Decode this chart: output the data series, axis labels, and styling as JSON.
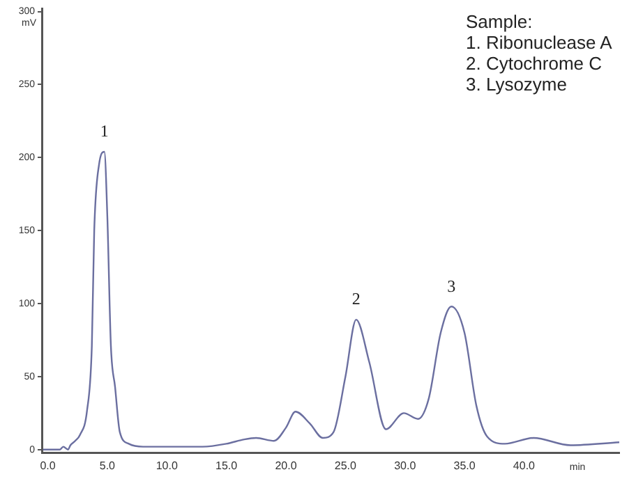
{
  "chart_data": {
    "type": "line",
    "xlabel": "min",
    "ylabel": "mV",
    "x": [
      -0.4,
      1.0,
      1.3,
      1.7,
      1.9,
      2.3,
      2.7,
      3.3,
      3.7,
      3.9,
      4.3,
      4.75,
      5.0,
      5.3,
      5.65,
      6.05,
      6.8,
      8,
      10,
      13,
      15,
      16.5,
      17.5,
      19,
      20,
      20.8,
      22,
      23.1,
      24,
      25,
      25.9,
      27,
      28.4,
      29.9,
      31.1,
      32,
      33,
      33.9,
      35,
      36,
      36.9,
      38.4,
      40.8,
      43.9,
      48
    ],
    "series": [
      {
        "color": "#6b6fa0",
        "values": [
          0,
          0,
          2,
          0,
          3,
          6,
          10,
          27,
          71,
          150,
          195,
          204,
          160,
          71,
          43,
          12,
          4,
          2,
          2,
          2,
          4,
          7,
          8,
          6,
          15,
          26,
          18,
          8,
          12,
          50,
          89,
          60,
          14,
          25,
          21,
          35,
          80,
          98,
          80,
          30,
          9,
          4,
          8,
          3,
          5
        ]
      }
    ],
    "xlim": [
      -0.5,
      48
    ],
    "xticks": [
      {
        "value": 0,
        "label": "0.0"
      },
      {
        "value": 5,
        "label": "5.0"
      },
      {
        "value": 10,
        "label": "10.0"
      },
      {
        "value": 15,
        "label": "15.0"
      },
      {
        "value": 20,
        "label": "20.0"
      },
      {
        "value": 25,
        "label": "25.0"
      },
      {
        "value": 30,
        "label": "30.0"
      },
      {
        "value": 35,
        "label": "35.0"
      },
      {
        "value": 40,
        "label": "40.0"
      }
    ],
    "ylim": [
      -2,
      302
    ],
    "yticks": [
      0,
      50,
      100,
      150,
      200,
      250,
      300
    ],
    "grid": false,
    "legend": false,
    "marker": "none",
    "line_style": "solid",
    "annotations": [
      {
        "text": "1",
        "x": 4.75,
        "y": 204
      },
      {
        "text": "2",
        "x": 25.9,
        "y": 89
      },
      {
        "text": "3",
        "x": 33.9,
        "y": 98
      },
      "Sample:",
      "1. Ribonuclease A",
      "2. Cytochrome C",
      "3. Lysozyme"
    ]
  }
}
